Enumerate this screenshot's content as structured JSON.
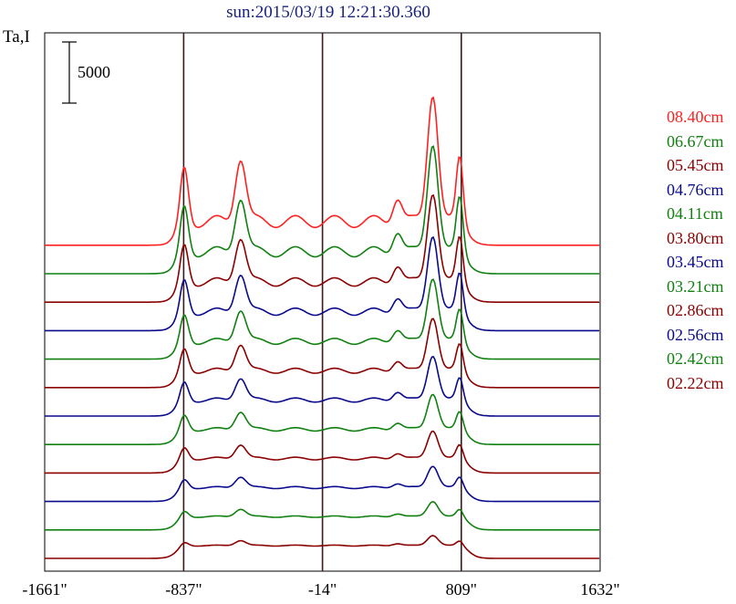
{
  "header": {
    "title": "sun:2015/03/19 12:21:30.360",
    "ylabel": "Ta,I"
  },
  "chart_data": {
    "type": "line",
    "title": "sun:2015/03/19 12:21:30.360",
    "ylabel": "Ta,I",
    "xlabel": "",
    "xlim": [
      -1661,
      1632
    ],
    "x_ticks": [
      "-1661\"",
      "-837\"",
      "-14\"",
      "809\"",
      "1632\""
    ],
    "x_tick_values": [
      -1661,
      -837,
      -14,
      809,
      1632
    ],
    "vertical_lines": [
      -837,
      -14,
      809
    ],
    "scale_bar": {
      "value": 5000,
      "label": "5000"
    },
    "legend_placement": "right",
    "series": [
      {
        "name": "08.40cm",
        "color": "#ff2020",
        "offset": 11,
        "amp": 1.0
      },
      {
        "name": "06.67cm",
        "color": "#108010",
        "offset": 10,
        "amp": 0.85
      },
      {
        "name": "05.45cm",
        "color": "#8b0000",
        "offset": 9,
        "amp": 0.7
      },
      {
        "name": "04.76cm",
        "color": "#0a0a8c",
        "offset": 8,
        "amp": 0.6
      },
      {
        "name": "04.11cm",
        "color": "#108010",
        "offset": 7,
        "amp": 0.5
      },
      {
        "name": "03.80cm",
        "color": "#8b0000",
        "offset": 6,
        "amp": 0.42
      },
      {
        "name": "03.45cm",
        "color": "#0a0a8c",
        "offset": 5,
        "amp": 0.35
      },
      {
        "name": "03.21cm",
        "color": "#108010",
        "offset": 4,
        "amp": 0.28
      },
      {
        "name": "02.86cm",
        "color": "#8b0000",
        "offset": 3,
        "amp": 0.22
      },
      {
        "name": "02.56cm",
        "color": "#0a0a8c",
        "offset": 2,
        "amp": 0.17
      },
      {
        "name": "02.42cm",
        "color": "#108010",
        "offset": 1,
        "amp": 0.12
      },
      {
        "name": "02.22cm",
        "color": "#8b0000",
        "offset": 0,
        "amp": 0.08
      }
    ]
  }
}
